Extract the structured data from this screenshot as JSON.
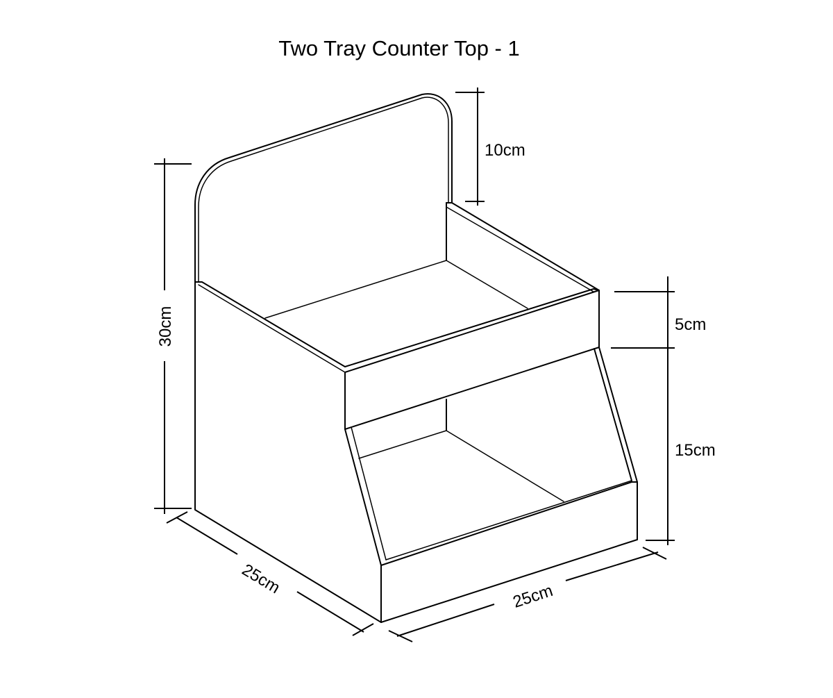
{
  "title": "Two Tray Counter Top - 1",
  "dimensions": {
    "height_total": "30cm",
    "header_height": "10cm",
    "upper_tray_front": "5cm",
    "lower_section": "15cm",
    "depth": "25cm",
    "width": "25cm"
  },
  "colors": {
    "line": "#000000",
    "background": "#ffffff"
  }
}
